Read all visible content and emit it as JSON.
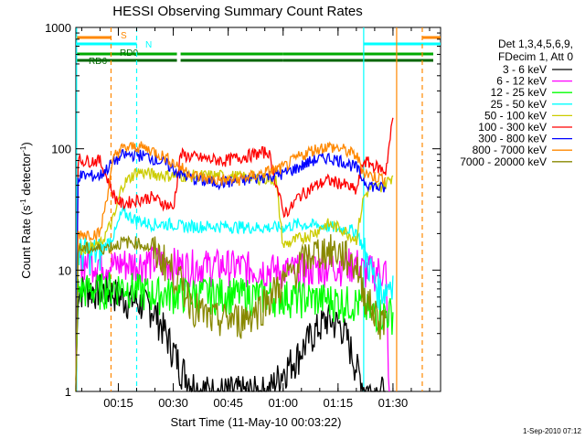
{
  "chart_data": {
    "type": "line",
    "title": "HESSI Observing Summary Count Rates",
    "xlabel": "Start Time (11-May-10 00:03:22)",
    "ylabel_main": "Count Rate (s",
    "ylabel_sup1": "-1",
    "ylabel_mid": " detector",
    "ylabel_sup2": "-1",
    "ylabel_end": ")",
    "yscale": "log",
    "xlim_min": [
      3.4,
      103
    ],
    "ylim": [
      1,
      1000
    ],
    "x_ticks": [
      {
        "value": 15,
        "label": "00:15"
      },
      {
        "value": 30,
        "label": "00:30"
      },
      {
        "value": 45,
        "label": "00:45"
      },
      {
        "value": 60,
        "label": "01:00"
      },
      {
        "value": 75,
        "label": "01:15"
      },
      {
        "value": 90,
        "label": "01:30"
      }
    ],
    "y_ticks": [
      {
        "value": 1,
        "label": "1"
      },
      {
        "value": 10,
        "label": "10"
      },
      {
        "value": 100,
        "label": "100"
      },
      {
        "value": 1000,
        "label": "1000"
      }
    ],
    "legend_header": [
      "Det 1,3,4,5,6,9,",
      "FDecim 1, Att 0"
    ],
    "legend_position": "right",
    "footer": "1-Sep-2010 07:12",
    "series": [
      {
        "name": "3 - 6 keV",
        "color": "#000000",
        "points": [
          [
            3.4,
            1
          ],
          [
            4,
            7
          ],
          [
            10,
            7
          ],
          [
            14,
            6.5
          ],
          [
            16,
            6
          ],
          [
            20,
            5.5
          ],
          [
            24,
            5
          ],
          [
            26,
            4
          ],
          [
            28,
            3
          ],
          [
            30,
            2.2
          ],
          [
            32,
            1.6
          ],
          [
            36,
            1.1
          ],
          [
            40,
            1
          ],
          [
            48,
            1
          ],
          [
            56,
            1
          ],
          [
            60,
            1.5
          ],
          [
            64,
            2
          ],
          [
            68,
            3
          ],
          [
            72,
            4
          ],
          [
            76,
            3.5
          ],
          [
            78,
            2.5
          ],
          [
            80,
            1.6
          ],
          [
            82,
            1.1
          ],
          [
            84,
            1
          ],
          [
            86,
            1
          ],
          [
            88,
            1
          ]
        ]
      },
      {
        "name": "6 - 12 keV",
        "color": "#ff00ff",
        "points": [
          [
            3.4,
            1
          ],
          [
            4,
            12
          ],
          [
            10,
            12
          ],
          [
            14,
            11
          ],
          [
            16,
            11.5
          ],
          [
            20,
            11.5
          ],
          [
            24,
            12
          ],
          [
            30,
            11.5
          ],
          [
            32,
            11
          ],
          [
            36,
            11
          ],
          [
            44,
            11
          ],
          [
            52,
            10.5
          ],
          [
            60,
            10
          ],
          [
            64,
            10
          ],
          [
            72,
            11
          ],
          [
            80,
            11.5
          ],
          [
            82,
            10
          ],
          [
            84,
            10
          ],
          [
            86,
            10
          ],
          [
            88,
            10
          ],
          [
            89,
            1
          ]
        ]
      },
      {
        "name": "12 - 25 keV",
        "color": "#00ff00",
        "points": [
          [
            3.4,
            1
          ],
          [
            4,
            7
          ],
          [
            10,
            7
          ],
          [
            14,
            7.5
          ],
          [
            16,
            7.5
          ],
          [
            20,
            7
          ],
          [
            24,
            6.5
          ],
          [
            30,
            6.5
          ],
          [
            32,
            6.5
          ],
          [
            36,
            6.5
          ],
          [
            44,
            6.5
          ],
          [
            52,
            6.3
          ],
          [
            60,
            6.2
          ],
          [
            66,
            6
          ],
          [
            72,
            5.8
          ],
          [
            78,
            5.5
          ],
          [
            80,
            5.5
          ],
          [
            82,
            5
          ],
          [
            84,
            4.5
          ],
          [
            86,
            4.5
          ],
          [
            88,
            4.5
          ],
          [
            90,
            4.5
          ]
        ]
      },
      {
        "name": "25 - 50 keV",
        "color": "#00ffff",
        "points": [
          [
            3.4,
            1
          ],
          [
            4,
            14
          ],
          [
            10,
            14
          ],
          [
            14,
            20
          ],
          [
            16,
            30
          ],
          [
            20,
            26
          ],
          [
            24,
            24
          ],
          [
            30,
            24
          ],
          [
            32,
            23
          ],
          [
            36,
            23
          ],
          [
            44,
            23
          ],
          [
            52,
            22.5
          ],
          [
            60,
            22.5
          ],
          [
            64,
            24
          ],
          [
            72,
            23
          ],
          [
            80,
            21
          ],
          [
            82,
            15
          ],
          [
            84,
            10
          ],
          [
            86,
            7
          ],
          [
            88,
            7
          ],
          [
            90,
            9
          ]
        ]
      },
      {
        "name": "50 - 100 keV",
        "color": "#cccc00",
        "points": [
          [
            3.4,
            1
          ],
          [
            4,
            15
          ],
          [
            10,
            16
          ],
          [
            14,
            28
          ],
          [
            16,
            50
          ],
          [
            20,
            65
          ],
          [
            24,
            62
          ],
          [
            30,
            60
          ],
          [
            32,
            60
          ],
          [
            36,
            60
          ],
          [
            44,
            60
          ],
          [
            52,
            58
          ],
          [
            58,
            56
          ],
          [
            60,
            16
          ],
          [
            64,
            18
          ],
          [
            68,
            20
          ],
          [
            72,
            24
          ],
          [
            76,
            22
          ],
          [
            80,
            18
          ],
          [
            82,
            40
          ],
          [
            84,
            48
          ],
          [
            86,
            48
          ],
          [
            88,
            52
          ],
          [
            90,
            60
          ]
        ]
      },
      {
        "name": "100 - 300 keV",
        "color": "#ff0000",
        "points": [
          [
            3.4,
            1
          ],
          [
            4,
            80
          ],
          [
            10,
            80
          ],
          [
            14,
            40
          ],
          [
            16,
            35
          ],
          [
            20,
            38
          ],
          [
            24,
            40
          ],
          [
            28,
            35
          ],
          [
            30,
            32
          ],
          [
            32,
            90
          ],
          [
            36,
            85
          ],
          [
            40,
            82
          ],
          [
            44,
            80
          ],
          [
            48,
            85
          ],
          [
            52,
            90
          ],
          [
            56,
            95
          ],
          [
            60,
            30
          ],
          [
            62,
            32
          ],
          [
            64,
            40
          ],
          [
            68,
            48
          ],
          [
            72,
            55
          ],
          [
            76,
            52
          ],
          [
            80,
            45
          ],
          [
            82,
            80
          ],
          [
            84,
            75
          ],
          [
            86,
            70
          ],
          [
            88,
            65
          ],
          [
            90,
            180
          ]
        ]
      },
      {
        "name": "300 - 800 keV",
        "color": "#0000ff",
        "points": [
          [
            3.4,
            1
          ],
          [
            4,
            60
          ],
          [
            10,
            60
          ],
          [
            14,
            80
          ],
          [
            16,
            88
          ],
          [
            20,
            90
          ],
          [
            24,
            85
          ],
          [
            28,
            75
          ],
          [
            32,
            62
          ],
          [
            36,
            56
          ],
          [
            40,
            53
          ],
          [
            44,
            53
          ],
          [
            48,
            54
          ],
          [
            52,
            57
          ],
          [
            56,
            60
          ],
          [
            60,
            62
          ],
          [
            64,
            70
          ],
          [
            68,
            80
          ],
          [
            72,
            85
          ],
          [
            76,
            80
          ],
          [
            80,
            70
          ],
          [
            82,
            55
          ],
          [
            84,
            50
          ],
          [
            86,
            48
          ],
          [
            88,
            47
          ]
        ]
      },
      {
        "name": "800 - 7000 keV",
        "color": "#ff8800",
        "points": [
          [
            3.4,
            1
          ],
          [
            4,
            20
          ],
          [
            10,
            20
          ],
          [
            14,
            90
          ],
          [
            16,
            100
          ],
          [
            20,
            105
          ],
          [
            24,
            98
          ],
          [
            28,
            85
          ],
          [
            32,
            70
          ],
          [
            36,
            60
          ],
          [
            40,
            56
          ],
          [
            44,
            55
          ],
          [
            48,
            56
          ],
          [
            52,
            60
          ],
          [
            56,
            65
          ],
          [
            60,
            70
          ],
          [
            64,
            85
          ],
          [
            68,
            98
          ],
          [
            72,
            105
          ],
          [
            76,
            100
          ],
          [
            80,
            88
          ],
          [
            82,
            65
          ],
          [
            84,
            60
          ],
          [
            86,
            58
          ],
          [
            88,
            58
          ]
        ]
      },
      {
        "name": "7000 - 20000 keV",
        "color": "#888800",
        "points": [
          [
            3.4,
            1
          ],
          [
            4,
            15
          ],
          [
            10,
            15
          ],
          [
            14,
            16
          ],
          [
            16,
            17
          ],
          [
            20,
            17
          ],
          [
            24,
            15
          ],
          [
            28,
            12
          ],
          [
            32,
            8
          ],
          [
            36,
            5
          ],
          [
            40,
            4
          ],
          [
            44,
            4
          ],
          [
            48,
            4
          ],
          [
            52,
            4.5
          ],
          [
            56,
            6
          ],
          [
            60,
            8
          ],
          [
            64,
            11
          ],
          [
            68,
            14
          ],
          [
            72,
            15
          ],
          [
            76,
            14
          ],
          [
            80,
            11
          ],
          [
            82,
            7
          ],
          [
            84,
            5
          ],
          [
            86,
            4
          ],
          [
            88,
            4
          ]
        ]
      }
    ],
    "flag_bars": [
      {
        "label": "S",
        "color": "#ff8800",
        "level": 1,
        "segments": [
          [
            3.4,
            13
          ],
          [
            98,
            103
          ]
        ]
      },
      {
        "label": "N",
        "color": "#00ffff",
        "level": 2,
        "segments": [
          [
            3.4,
            20
          ],
          [
            82,
            103
          ]
        ]
      },
      {
        "label": "RD0",
        "color": "#00aa00",
        "level": 3,
        "segments": [
          [
            3.4,
            31
          ],
          [
            32,
            60
          ],
          [
            60,
            82
          ],
          [
            82,
            101
          ]
        ]
      },
      {
        "label": "RD6",
        "color": "#006600",
        "level": 4,
        "segments": [
          [
            3.4,
            31
          ],
          [
            32,
            60
          ],
          [
            60,
            82
          ],
          [
            82,
            101
          ]
        ]
      }
    ],
    "vlines": [
      {
        "x": 3.6,
        "color": "#00ffff",
        "dashed": false
      },
      {
        "x": 13,
        "color": "#ff8800",
        "dashed": true
      },
      {
        "x": 20,
        "color": "#00ffff",
        "dashed": true
      },
      {
        "x": 82,
        "color": "#00ffff",
        "dashed": false
      },
      {
        "x": 91,
        "color": "#ff8800",
        "dashed": false
      },
      {
        "x": 98,
        "color": "#ff8800",
        "dashed": true
      }
    ]
  }
}
